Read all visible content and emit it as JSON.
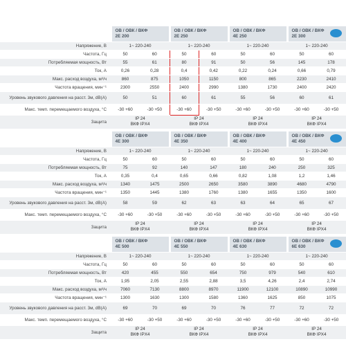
{
  "tables": [
    {
      "products": [
        {
          "series": "ОВ / ОВК / ВКФ",
          "model": "2Е 200"
        },
        {
          "series": "ОВ / ОВК / ВКФ",
          "model": "2Е 250"
        },
        {
          "series": "ОВ / ОВК / ВКФ",
          "model": "4Е 250"
        },
        {
          "series": "ОВ / ОВК / ВКФ",
          "model": "2Е 300"
        }
      ],
      "voltage_label": "Напряжение, В",
      "voltage": [
        "1~ 220-240",
        "1~ 220-240",
        "1~ 220-240",
        "1~ 220-240"
      ],
      "rows": [
        {
          "label": "Частота, Гц",
          "values": [
            "50",
            "60",
            "50",
            "60",
            "50",
            "60",
            "50",
            "60"
          ]
        },
        {
          "label": "Потребляемая мощность, Вт",
          "values": [
            "55",
            "61",
            "80",
            "91",
            "50",
            "56",
            "145",
            "178"
          ]
        },
        {
          "label": "Ток, А",
          "values": [
            "0,26",
            "0,28",
            "0,4",
            "0,42",
            "0,22",
            "0,24",
            "0,66",
            "0,79"
          ]
        },
        {
          "label": "Макс. расход воздуха, м³/ч",
          "values": [
            "860",
            "875",
            "1050",
            "1150",
            "800",
            "865",
            "2230",
            "2410"
          ]
        },
        {
          "label": "Частота вращения, мин⁻¹",
          "values": [
            "2300",
            "2550",
            "2400",
            "2990",
            "1380",
            "1730",
            "2400",
            "2420"
          ]
        },
        {
          "label": "Уровень звукового давления на расст. 3м, dB(A)",
          "values": [
            "50",
            "51",
            "60",
            "61",
            "55",
            "56",
            "60",
            "61"
          ]
        },
        {
          "label": "Макс. темп. перемещаемого воздуха, °С",
          "values": [
            "-30 +60",
            "-30 +50",
            "-30 +60",
            "-30 +50",
            "-30 +60",
            "-30 +50",
            "-30 +60",
            "-30 +50"
          ]
        }
      ],
      "protection_label": "Защита",
      "protection": [
        [
          "IP 24",
          "ВКФ IPX4"
        ],
        [
          "IP 24",
          "ВКФ IPX4"
        ],
        [
          "IP 24",
          "ВКФ IPX4"
        ],
        [
          "IP 24",
          "ВКФ IPX4"
        ]
      ]
    },
    {
      "products": [
        {
          "series": "ОВ / ОВК / ВКФ",
          "model": "4Е 300"
        },
        {
          "series": "ОВ / ОВК / ВКФ",
          "model": "4Е 350"
        },
        {
          "series": "ОВ / ОВК / ВКФ",
          "model": "4Е 400"
        },
        {
          "series": "ОВ / ОВК / ВКФ",
          "model": "4Е 450"
        }
      ],
      "voltage_label": "Напряжение, В",
      "voltage": [
        "1~ 220-240",
        "1~ 220-240",
        "1~ 220-240",
        "1~ 220-240"
      ],
      "rows": [
        {
          "label": "Частота, Гц",
          "values": [
            "50",
            "60",
            "50",
            "60",
            "50",
            "60",
            "50",
            "60"
          ]
        },
        {
          "label": "Потребляемая мощность, Вт",
          "values": [
            "75",
            "92",
            "140",
            "147",
            "180",
            "240",
            "250",
            "325"
          ]
        },
        {
          "label": "Ток, А",
          "values": [
            "0,35",
            "0,4",
            "0,65",
            "0,66",
            "0,82",
            "1,08",
            "1,2",
            "1,46"
          ]
        },
        {
          "label": "Макс. расход воздуха, м³/ч",
          "values": [
            "1340",
            "1475",
            "2500",
            "2650",
            "3580",
            "3890",
            "4680",
            "4790"
          ]
        },
        {
          "label": "Частота вращения, мин⁻¹",
          "values": [
            "1350",
            "1445",
            "1380",
            "1760",
            "1380",
            "1655",
            "1350",
            "1600"
          ]
        },
        {
          "label": "Уровень звукового давления на расст. 3м, dB(A)",
          "values": [
            "58",
            "59",
            "62",
            "63",
            "63",
            "64",
            "65",
            "67"
          ]
        },
        {
          "label": "Макс. темп. перемещаемого воздуха, °С",
          "values": [
            "-30 +60",
            "-30 +50",
            "-30 +60",
            "-30 +50",
            "-30 +60",
            "-30 +50",
            "-30 +60",
            "-30 +50"
          ]
        }
      ],
      "protection_label": "Защита",
      "protection": [
        [
          "IP 24",
          "ВКФ IPX4"
        ],
        [
          "IP 24",
          "ВКФ IPX4"
        ],
        [
          "IP 24",
          "ВКФ IPX4"
        ],
        [
          "IP 24",
          "ВКФ IPX4"
        ]
      ]
    },
    {
      "products": [
        {
          "series": "ОВ / ОВК / ВКФ",
          "model": "4Е 500"
        },
        {
          "series": "ОВ / ОВК / ВКФ",
          "model": "4Е 550"
        },
        {
          "series": "ОВ / ОВК / ВКФ",
          "model": "4Е 630"
        },
        {
          "series": "ОВ / ОВК / ВКФ",
          "model": "6Е 630"
        }
      ],
      "voltage_label": "Напряжение, В",
      "voltage": [
        "1~ 220-240",
        "1~ 220-240",
        "1~ 220-240",
        "1~ 220-240"
      ],
      "rows": [
        {
          "label": "Частота, Гц",
          "values": [
            "50",
            "60",
            "50",
            "60",
            "50",
            "60",
            "50",
            "60"
          ]
        },
        {
          "label": "Потребляемая мощность, Вт",
          "values": [
            "420",
            "455",
            "550",
            "654",
            "750",
            "979",
            "540",
            "610"
          ]
        },
        {
          "label": "Ток, А",
          "values": [
            "1,95",
            "2,05",
            "2,55",
            "2,88",
            "3,5",
            "4,26",
            "2,4",
            "2,74"
          ]
        },
        {
          "label": "Макс. расход воздуха, м³/ч",
          "values": [
            "7060",
            "7130",
            "8800",
            "8970",
            "11900",
            "12100",
            "10890",
            "10990"
          ]
        },
        {
          "label": "Частота вращения, мин⁻¹",
          "values": [
            "1300",
            "1630",
            "1300",
            "1580",
            "1360",
            "1625",
            "850",
            "1075"
          ]
        },
        {
          "label": "Уровень звукового давления на расст. 3м, dB(A)",
          "values": [
            "69",
            "70",
            "69",
            "70",
            "76",
            "77",
            "72",
            "72"
          ]
        },
        {
          "label": "Макс. темп. перемещаемого воздуха, °С",
          "values": [
            "-30 +60",
            "-30 +50",
            "-30 +60",
            "-30 +50",
            "-30 +60",
            "-30 +50",
            "-30 +60",
            "-30 +50"
          ]
        }
      ],
      "protection_label": "Защита",
      "protection": [
        [
          "IP 24",
          "ВКФ IPX4"
        ],
        [
          "IP 24",
          "ВКФ IPX4"
        ],
        [
          "IP 24",
          "ВКФ IPX4"
        ],
        [
          "IP 24",
          "ВКФ IPX4"
        ]
      ]
    }
  ]
}
